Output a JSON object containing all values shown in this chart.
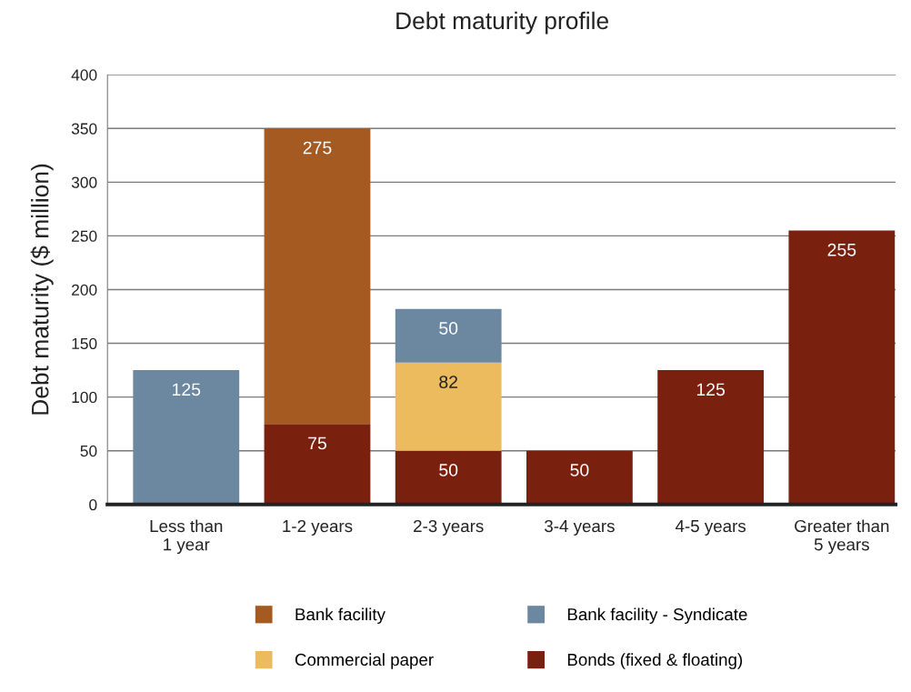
{
  "chart_data": {
    "type": "bar",
    "title": "Debt maturity profile",
    "ylabel": "Debt maturity ($ million)",
    "categories": [
      "Less than\n1 year",
      "1-2 years",
      "2-3 years",
      "3-4 years",
      "4-5 years",
      "Greater than\n5 years"
    ],
    "stacked": true,
    "series": [
      {
        "name": "Bonds (fixed & floating)",
        "color": "#7a200e",
        "values": [
          null,
          75,
          50,
          50,
          125,
          255
        ]
      },
      {
        "name": "Commercial paper",
        "color": "#ecbb5e",
        "values": [
          null,
          null,
          82,
          null,
          null,
          null
        ]
      },
      {
        "name": "Bank facility - Syndicate",
        "color": "#6b88a0",
        "values": [
          125,
          null,
          50,
          null,
          null,
          null
        ]
      },
      {
        "name": "Bank facility",
        "color": "#a55a22",
        "values": [
          null,
          275,
          null,
          null,
          null,
          null
        ]
      }
    ],
    "ylim": [
      0,
      400
    ],
    "yticks": [
      0,
      50,
      100,
      150,
      200,
      250,
      300,
      350,
      400
    ],
    "grid": "y",
    "legend": "bottom",
    "data_labels": true
  }
}
